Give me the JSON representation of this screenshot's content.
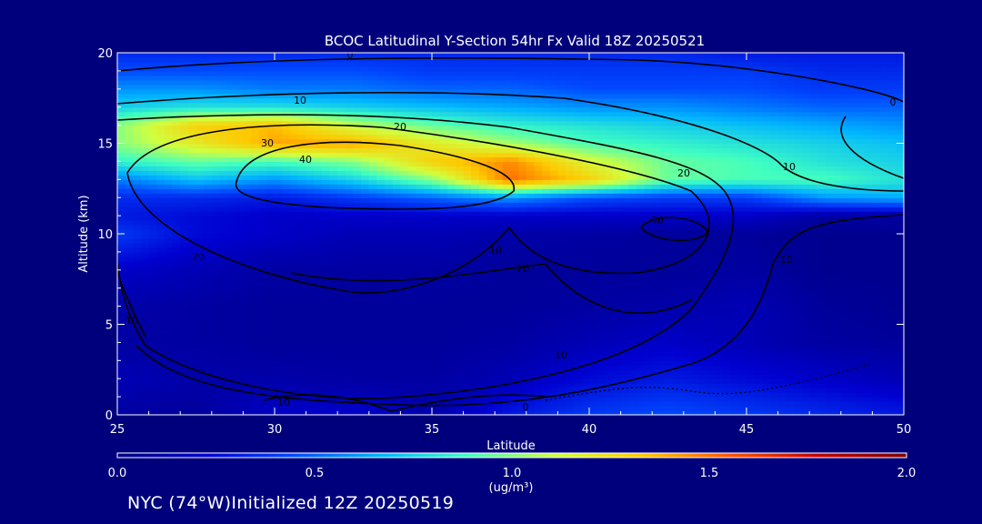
{
  "chart_data": {
    "type": "heatmap",
    "title": "BCOC Latitudinal Y-Section 54hr  Fx Valid 18Z 20250521",
    "xlabel": "Latitude",
    "ylabel": "Altitude (km)",
    "xlim": [
      25,
      50
    ],
    "ylim": [
      0,
      20
    ],
    "x_ticks": [
      "25",
      "30",
      "35",
      "40",
      "45",
      "50"
    ],
    "y_ticks": [
      "0",
      "5",
      "10",
      "15",
      "20"
    ],
    "colorbar": {
      "min": 0.0,
      "max": 2.0,
      "ticks": [
        "0.0",
        "0.5",
        "1.0",
        "1.5",
        "2.0"
      ],
      "units": "(ug/m³)",
      "colors": [
        "#00007c",
        "#0000d0",
        "#0048ff",
        "#00b4ff",
        "#40ffc0",
        "#d0ff40",
        "#ffc800",
        "#ff5000",
        "#c00000",
        "#7a0000"
      ]
    },
    "contour_labels": [
      "0",
      "10",
      "20",
      "30",
      "40",
      "20",
      "30",
      "10",
      "20",
      "10",
      "10",
      "10",
      "0",
      "10",
      "0",
      "20",
      "10"
    ],
    "concentration_field": {
      "latitudes": [
        25,
        27.5,
        30,
        32.5,
        35,
        37.5,
        40,
        42.5,
        45,
        47.5,
        50
      ],
      "altitudes_km": [
        0,
        2,
        4,
        6,
        8,
        10,
        11,
        12,
        13,
        14,
        15,
        16,
        17,
        18,
        19,
        20
      ],
      "rows": [
        [
          0.1,
          0.08,
          0.2,
          0.22,
          0.12,
          0.3,
          0.4,
          0.45,
          0.4,
          0.35,
          0.3
        ],
        [
          0.15,
          0.12,
          0.12,
          0.1,
          0.1,
          0.15,
          0.25,
          0.3,
          0.25,
          0.2,
          0.15
        ],
        [
          0.1,
          0.1,
          0.08,
          0.08,
          0.08,
          0.1,
          0.15,
          0.2,
          0.15,
          0.1,
          0.08
        ],
        [
          0.12,
          0.1,
          0.08,
          0.08,
          0.08,
          0.08,
          0.1,
          0.12,
          0.15,
          0.08,
          0.05
        ],
        [
          0.2,
          0.15,
          0.1,
          0.1,
          0.1,
          0.08,
          0.08,
          0.08,
          0.1,
          0.05,
          0.05
        ],
        [
          0.4,
          0.25,
          0.2,
          0.15,
          0.15,
          0.12,
          0.1,
          0.08,
          0.08,
          0.05,
          0.05
        ],
        [
          0.3,
          0.25,
          0.2,
          0.2,
          0.2,
          0.2,
          0.2,
          0.2,
          0.2,
          0.1,
          0.1
        ],
        [
          0.35,
          0.35,
          0.3,
          0.4,
          0.5,
          0.6,
          0.45,
          0.4,
          0.4,
          0.6,
          0.65
        ],
        [
          0.55,
          0.7,
          0.6,
          0.75,
          1.0,
          1.5,
          1.3,
          0.95,
          0.9,
          0.9,
          0.8
        ],
        [
          0.85,
          0.95,
          0.9,
          1.0,
          1.3,
          1.45,
          1.15,
          0.95,
          0.9,
          0.8,
          0.75
        ],
        [
          1.0,
          1.2,
          1.4,
          1.4,
          1.2,
          1.05,
          0.9,
          0.85,
          0.8,
          0.75,
          0.7
        ],
        [
          1.0,
          1.3,
          1.35,
          1.1,
          0.95,
          0.85,
          0.8,
          0.75,
          0.7,
          0.65,
          0.6
        ],
        [
          0.75,
          0.8,
          0.8,
          0.75,
          0.7,
          0.65,
          0.6,
          0.6,
          0.55,
          0.5,
          0.5
        ],
        [
          0.6,
          0.6,
          0.55,
          0.55,
          0.5,
          0.5,
          0.45,
          0.45,
          0.45,
          0.4,
          0.4
        ],
        [
          0.45,
          0.45,
          0.45,
          0.45,
          0.4,
          0.4,
          0.4,
          0.4,
          0.4,
          0.35,
          0.35
        ],
        [
          0.35,
          0.35,
          0.35,
          0.35,
          0.35,
          0.35,
          0.35,
          0.35,
          0.3,
          0.3,
          0.3
        ]
      ]
    }
  },
  "footer": "NYC (74°W)Initialized 12Z 20250519"
}
